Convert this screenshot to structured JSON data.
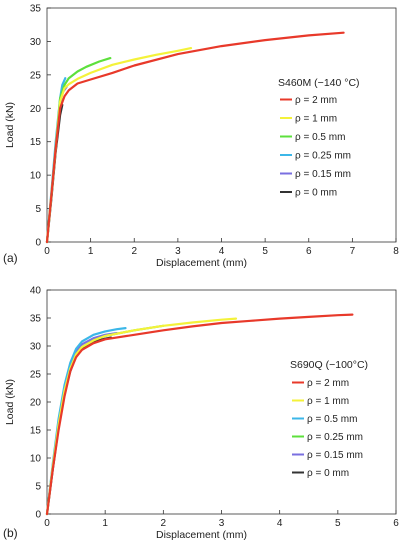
{
  "chart_data": [
    {
      "type": "line",
      "panel_label": "(a)",
      "xlabel": "Displacement (mm)",
      "ylabel": "Load (kN)",
      "xlim": [
        0,
        8
      ],
      "ylim": [
        0,
        35
      ],
      "xticks": [
        "0",
        "1",
        "2",
        "3",
        "4",
        "5",
        "6",
        "7",
        "8"
      ],
      "yticks": [
        "0",
        "5",
        "10",
        "15",
        "20",
        "25",
        "30",
        "35"
      ],
      "grid": false,
      "legend_title": "S460M (−140 °C)",
      "legend_position": "right",
      "series": [
        {
          "name": "ρ = 2 mm",
          "color": "#e8392a",
          "x": [
            0,
            0.1,
            0.2,
            0.3,
            0.4,
            0.5,
            0.7,
            1.0,
            1.5,
            2.0,
            3.0,
            4.0,
            5.0,
            6.0,
            6.8
          ],
          "y": [
            0,
            7.0,
            14.0,
            20.0,
            21.8,
            22.7,
            23.7,
            24.3,
            25.3,
            26.4,
            28.1,
            29.3,
            30.2,
            30.9,
            31.3
          ]
        },
        {
          "name": "ρ = 1 mm",
          "color": "#f4f23a",
          "x": [
            0,
            0.1,
            0.2,
            0.3,
            0.4,
            0.5,
            0.7,
            1.0,
            1.5,
            2.0,
            2.5,
            3.0,
            3.3
          ],
          "y": [
            0,
            7.0,
            14.0,
            21.0,
            23.0,
            23.6,
            24.4,
            25.3,
            26.5,
            27.3,
            28.0,
            28.6,
            29.0
          ]
        },
        {
          "name": "ρ = 0.5 mm",
          "color": "#5de03c",
          "x": [
            0,
            0.1,
            0.2,
            0.3,
            0.4,
            0.5,
            0.7,
            0.9,
            1.2,
            1.45
          ],
          "y": [
            0,
            7.0,
            14.0,
            21.5,
            23.5,
            24.5,
            25.5,
            26.2,
            27.0,
            27.5
          ]
        },
        {
          "name": "ρ = 0.25 mm",
          "color": "#3cb7e8",
          "x": [
            0,
            0.1,
            0.2,
            0.3,
            0.35,
            0.42
          ],
          "y": [
            0,
            7.5,
            15.0,
            21.5,
            23.5,
            24.5
          ]
        },
        {
          "name": "ρ = 0.15 mm",
          "color": "#7a6fe0",
          "x": [
            0,
            0.1,
            0.2,
            0.3,
            0.35,
            0.45
          ],
          "y": [
            0,
            7.0,
            14.5,
            20.5,
            22.3,
            23.2
          ]
        },
        {
          "name": "ρ = 0 mm",
          "color": "#333333",
          "x": [
            0,
            0.1,
            0.2,
            0.3,
            0.35
          ],
          "y": [
            0,
            6.5,
            13.5,
            19.0,
            20.5
          ]
        }
      ]
    },
    {
      "type": "line",
      "panel_label": "(b)",
      "xlabel": "Displacement (mm)",
      "ylabel": "Load (kN)",
      "xlim": [
        0,
        6
      ],
      "ylim": [
        0,
        40
      ],
      "xticks": [
        "0",
        "1",
        "2",
        "3",
        "4",
        "5",
        "6"
      ],
      "yticks": [
        "0",
        "5",
        "10",
        "15",
        "20",
        "25",
        "30",
        "35",
        "40"
      ],
      "grid": false,
      "legend_title": "S690Q (−100°C)",
      "legend_position": "right",
      "series": [
        {
          "name": "ρ = 2 mm",
          "color": "#e8392a",
          "x": [
            0,
            0.1,
            0.2,
            0.3,
            0.4,
            0.5,
            0.6,
            0.8,
            1.0,
            1.5,
            2.0,
            2.5,
            3.0,
            3.5,
            4.0,
            4.5,
            5.0,
            5.25
          ],
          "y": [
            0,
            8.0,
            15.0,
            21.0,
            25.5,
            28.0,
            29.3,
            30.5,
            31.2,
            32.0,
            32.8,
            33.5,
            34.1,
            34.5,
            34.9,
            35.2,
            35.5,
            35.6
          ]
        },
        {
          "name": "ρ = 1 mm",
          "color": "#f4f23a",
          "x": [
            0,
            0.1,
            0.2,
            0.3,
            0.4,
            0.5,
            0.6,
            0.8,
            1.0,
            1.5,
            2.0,
            2.5,
            3.0,
            3.25
          ],
          "y": [
            0,
            8.5,
            16.0,
            22.0,
            26.0,
            28.5,
            29.8,
            31.0,
            31.8,
            32.8,
            33.6,
            34.2,
            34.7,
            34.9
          ]
        },
        {
          "name": "ρ = 0.5 mm",
          "color": "#3cb7e8",
          "x": [
            0,
            0.1,
            0.2,
            0.3,
            0.4,
            0.5,
            0.6,
            0.8,
            1.0,
            1.2,
            1.35
          ],
          "y": [
            0,
            9.0,
            17.0,
            23.0,
            27.0,
            29.5,
            30.8,
            32.0,
            32.6,
            33.0,
            33.2
          ]
        },
        {
          "name": "ρ = 0.25 mm",
          "color": "#5de03c",
          "x": [
            0,
            0.1,
            0.2,
            0.3,
            0.4,
            0.5,
            0.6,
            0.8,
            1.0,
            1.5,
            2.0
          ],
          "y": [
            0,
            8.5,
            16.0,
            22.0,
            26.0,
            28.5,
            29.8,
            31.0,
            31.8,
            32.8,
            33.6
          ]
        },
        {
          "name": "ρ = 0.15 mm",
          "color": "#7a6fe0",
          "x": [
            0,
            0.1,
            0.2,
            0.3,
            0.4,
            0.5,
            0.6,
            0.8,
            1.0,
            1.2
          ],
          "y": [
            0,
            8.5,
            16.5,
            22.5,
            26.5,
            29.0,
            30.3,
            31.4,
            32.0,
            32.3
          ]
        },
        {
          "name": "ρ = 0 mm",
          "color": "#333333",
          "x": [
            0,
            0.1,
            0.2,
            0.3,
            0.4,
            0.5,
            0.6,
            0.8,
            1.0,
            1.1
          ],
          "y": [
            0,
            8.0,
            15.5,
            21.5,
            25.5,
            28.2,
            29.6,
            30.8,
            31.3,
            31.5
          ]
        }
      ]
    }
  ]
}
